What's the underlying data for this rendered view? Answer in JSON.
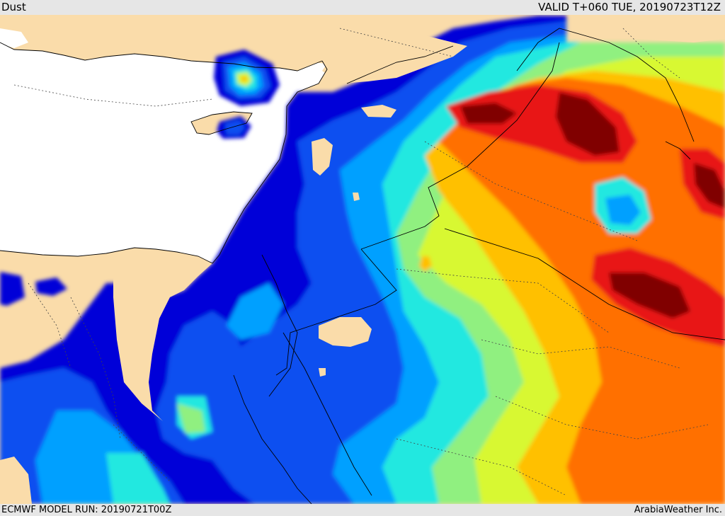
{
  "header": {
    "title": "Dust",
    "valid": "VALID T+060 TUE, 20190723T12Z"
  },
  "footer": {
    "model_run": "ECMWF MODEL RUN: 20190721T00Z",
    "credit": "ArabiaWeather Inc."
  },
  "colors": {
    "sea": "#ffffff",
    "land": "#fadcaa",
    "level1": "#0000d8",
    "level2": "#0a50f0",
    "level3": "#00a0ff",
    "level4": "#20e8e0",
    "level5": "#90f080",
    "level6": "#d8f830",
    "level7": "#ffc000",
    "level8": "#ff7000",
    "level9": "#e81818",
    "level10": "#800000"
  }
}
